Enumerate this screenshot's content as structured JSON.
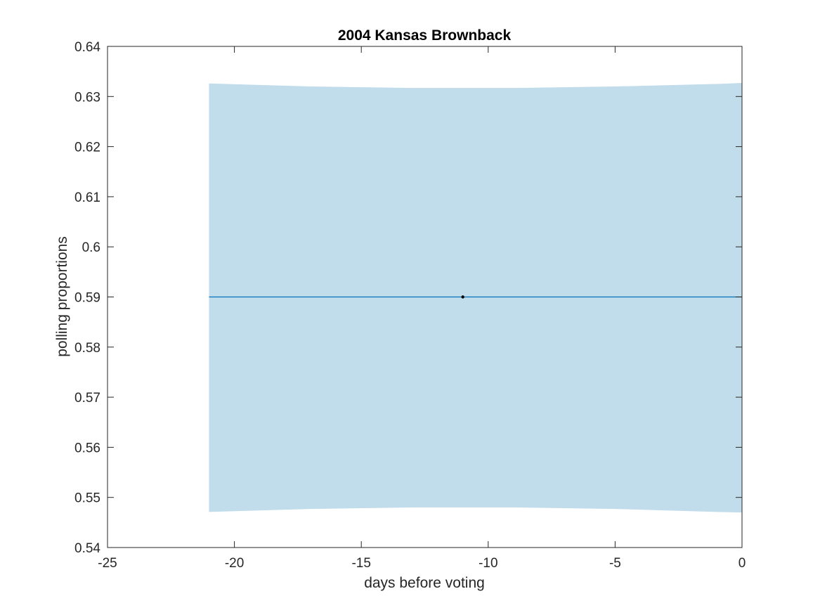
{
  "chart_data": {
    "type": "line",
    "title": "2004 Kansas Brownback",
    "xlabel": "days before voting",
    "ylabel": "polling proportions",
    "xlim": [
      -25,
      0
    ],
    "ylim": [
      0.54,
      0.64
    ],
    "xticks": [
      -25,
      -20,
      -15,
      -10,
      -5,
      0
    ],
    "yticks": [
      0.54,
      0.55,
      0.56,
      0.57,
      0.58,
      0.59,
      0.6,
      0.61,
      0.62,
      0.63,
      0.64
    ],
    "xtick_labels": [
      "-25",
      "-20",
      "-15",
      "-10",
      "-5",
      "0"
    ],
    "ytick_labels": [
      "0.54",
      "0.55",
      "0.56",
      "0.57",
      "0.58",
      "0.59",
      "0.6",
      "0.61",
      "0.62",
      "0.63",
      "0.64"
    ],
    "grid": false,
    "band": {
      "x": [
        -21,
        -17,
        -13,
        -11,
        -9,
        -5,
        -1,
        0
      ],
      "upper": [
        0.6326,
        0.632,
        0.6317,
        0.6317,
        0.6317,
        0.632,
        0.6325,
        0.6327
      ],
      "lower": [
        0.5471,
        0.5477,
        0.548,
        0.548,
        0.548,
        0.5477,
        0.5471,
        0.547
      ]
    },
    "trend": {
      "x": [
        -21,
        0
      ],
      "y": [
        0.59,
        0.59
      ]
    },
    "points": [
      {
        "x": -11,
        "y": 0.59
      }
    ],
    "colors": {
      "band": "#c1dcea",
      "trend": "#0072bd",
      "point": "#000000",
      "axes": "#262626"
    }
  }
}
